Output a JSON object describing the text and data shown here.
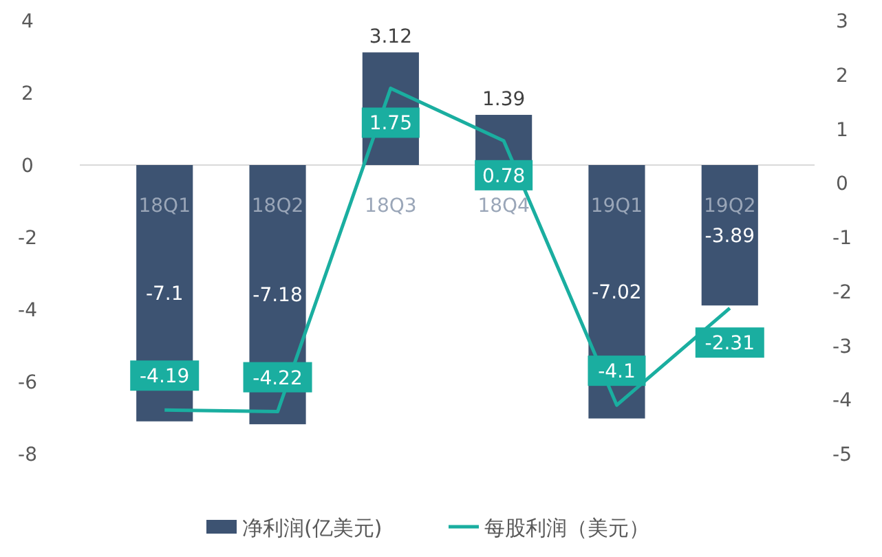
{
  "chart_data": {
    "type": "bar",
    "categories": [
      "18Q1",
      "18Q2",
      "18Q3",
      "18Q4",
      "19Q1",
      "19Q2"
    ],
    "series": [
      {
        "name": "净利润(亿美元)",
        "color": "#3d5372",
        "values": [
          -7.1,
          -7.18,
          3.12,
          1.39,
          -7.02,
          -3.89
        ]
      },
      {
        "name": "每股利润（美元）",
        "type": "line",
        "axis": "y2",
        "color": "#1aaea0",
        "values": [
          -4.19,
          -4.22,
          1.75,
          0.78,
          -4.1,
          -2.31
        ]
      }
    ],
    "ylim": [
      -8,
      4
    ],
    "yticks": [
      -8,
      -6,
      -4,
      -2,
      0,
      2,
      4
    ],
    "y2lim": [
      -5,
      3
    ],
    "y2ticks": [
      -5,
      -4,
      -3,
      -2,
      -1,
      0,
      1,
      2,
      3
    ],
    "data_labels": true,
    "legend": "bottom",
    "grid": false
  }
}
